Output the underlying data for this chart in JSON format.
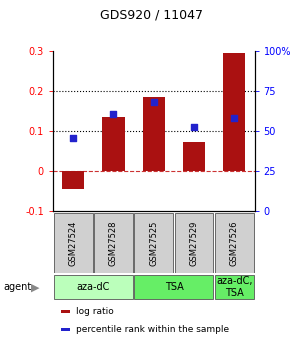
{
  "title": "GDS920 / 11047",
  "samples": [
    "GSM27524",
    "GSM27528",
    "GSM27525",
    "GSM27529",
    "GSM27526"
  ],
  "log_ratios": [
    -0.045,
    0.135,
    0.185,
    0.073,
    0.295
  ],
  "percentile_ranks": [
    0.083,
    0.143,
    0.173,
    0.11,
    0.132
  ],
  "bar_color": "#aa1111",
  "dot_color": "#2222cc",
  "ylim_left": [
    -0.1,
    0.3
  ],
  "ylim_right": [
    0,
    100
  ],
  "yticks_left": [
    -0.1,
    0.0,
    0.1,
    0.2,
    0.3
  ],
  "ytick_labels_left": [
    "-0.1",
    "0",
    "0.1",
    "0.2",
    "0.3"
  ],
  "yticks_right": [
    0,
    25,
    50,
    75,
    100
  ],
  "ytick_labels_right": [
    "0",
    "25",
    "50",
    "75",
    "100%"
  ],
  "hlines_dotted": [
    0.1,
    0.2
  ],
  "hline_dashed": 0.0,
  "agent_groups": [
    {
      "label": "aza-dC",
      "indices": [
        0,
        1
      ],
      "color": "#bbffbb"
    },
    {
      "label": "TSA",
      "indices": [
        2,
        3
      ],
      "color": "#66ee66"
    },
    {
      "label": "aza-dC,\nTSA",
      "indices": [
        4
      ],
      "color": "#66ee66"
    }
  ],
  "legend_items": [
    {
      "color": "#aa1111",
      "label": "log ratio"
    },
    {
      "color": "#2222cc",
      "label": "percentile rank within the sample"
    }
  ],
  "bar_width": 0.55,
  "dot_size": 22
}
